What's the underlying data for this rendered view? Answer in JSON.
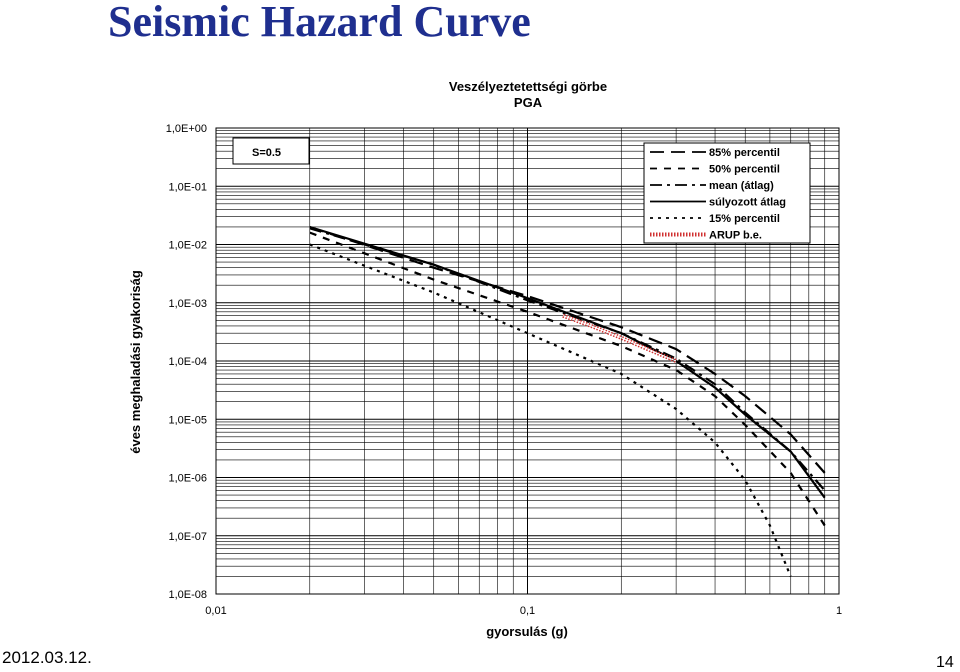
{
  "slide": {
    "title": "Seismic Hazard Curve",
    "date": "2012.03.12.",
    "page_number": "14"
  },
  "chart_data": {
    "type": "line",
    "title": "Veszélyeztetettségi görbe",
    "subtitle": "PGA",
    "xlabel": "gyorsulás (g)",
    "ylabel": "éves meghaladási gyakoriság",
    "xscale": "log",
    "yscale": "log",
    "xlim": [
      0.01,
      1
    ],
    "ylim": [
      1e-08,
      1
    ],
    "x_tick_labels": [
      "0,01",
      "0,1",
      "1"
    ],
    "y_tick_labels": [
      "1,0E+00",
      "1,0E-01",
      "1,0E-02",
      "1,0E-03",
      "1,0E-04",
      "1,0E-05",
      "1,0E-06",
      "1,0E-07",
      "1,0E-08"
    ],
    "grid": true,
    "annotation": "S=0.5",
    "legend_position": "top-right",
    "series": [
      {
        "name": "85% percentil",
        "dash": "long-dash",
        "x": [
          0.02,
          0.05,
          0.1,
          0.2,
          0.3,
          0.4,
          0.5,
          0.7,
          0.9
        ],
        "y": [
          0.02,
          0.004,
          0.0013,
          0.00038,
          0.00016,
          6e-05,
          2.5e-05,
          5.5e-06,
          1.2e-06
        ]
      },
      {
        "name": "50% percentil",
        "dash": "dash",
        "x": [
          0.02,
          0.05,
          0.1,
          0.2,
          0.3,
          0.4,
          0.5,
          0.7,
          0.9
        ],
        "y": [
          0.016,
          0.0025,
          0.0007,
          0.00018,
          7e-05,
          2.5e-05,
          8e-06,
          1.2e-06,
          1.5e-07
        ]
      },
      {
        "name": "mean (átlag)",
        "dash": "dash-dot",
        "x": [
          0.02,
          0.05,
          0.1,
          0.2,
          0.3,
          0.4,
          0.5,
          0.7,
          0.9
        ],
        "y": [
          0.019,
          0.0045,
          0.0011,
          0.0003,
          0.00011,
          4e-05,
          1.3e-05,
          2.8e-06,
          6e-07
        ]
      },
      {
        "name": "súlyozott átlag",
        "dash": "solid",
        "x": [
          0.02,
          0.05,
          0.1,
          0.2,
          0.3,
          0.4,
          0.5,
          0.7,
          0.9
        ],
        "y": [
          0.02,
          0.0045,
          0.0012,
          0.0003,
          0.0001,
          3.5e-05,
          1.2e-05,
          2.8e-06,
          4.5e-07
        ]
      },
      {
        "name": "15% percentil",
        "dash": "short-dash",
        "x": [
          0.02,
          0.05,
          0.1,
          0.2,
          0.3,
          0.4,
          0.5,
          0.6,
          0.7
        ],
        "y": [
          0.01,
          0.0015,
          0.0003,
          6e-05,
          1.5e-05,
          4e-06,
          9e-07,
          1.5e-07,
          2e-08
        ]
      },
      {
        "name": "ARUP b.e.",
        "dash": "hatched-red",
        "x": [
          0.13,
          0.16,
          0.2,
          0.25,
          0.3
        ],
        "y": [
          0.0006,
          0.0004,
          0.00025,
          0.00015,
          0.0001
        ]
      }
    ]
  }
}
